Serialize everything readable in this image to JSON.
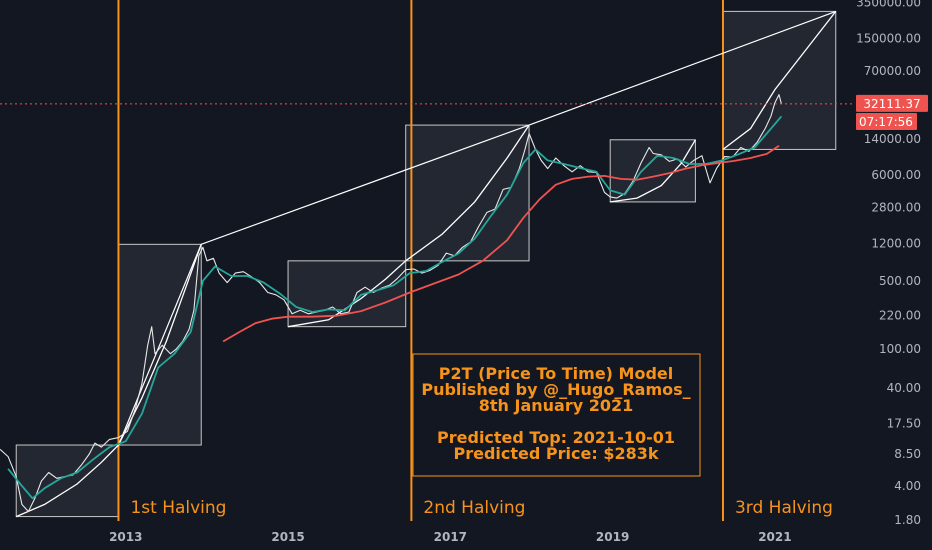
{
  "chart_data": {
    "type": "line",
    "title": "",
    "xlabel": "",
    "ylabel": "",
    "scale": "log",
    "ylim": [
      1.6,
      370000
    ],
    "xlim": [
      2011.45,
      2021.95
    ],
    "y_ticks": [
      "350000.00",
      "150000.00",
      "70000.00",
      "14000.00",
      "6000.00",
      "2800.00",
      "1200.00",
      "500.00",
      "220.00",
      "100.00",
      "40.00",
      "17.50",
      "8.50",
      "4.00",
      "1.80"
    ],
    "y_tick_values": [
      350000,
      150000,
      70000,
      14000,
      6000,
      2800,
      1200,
      500,
      220,
      100,
      40,
      17.5,
      8.5,
      4,
      1.8
    ],
    "x_ticks": [
      "2013",
      "2015",
      "2017",
      "2019",
      "2021"
    ],
    "x_tick_values": [
      2013,
      2015,
      2017,
      2019,
      2021
    ],
    "grid": false,
    "halvings": [
      {
        "label": "1st Halving",
        "date": 2012.91
      },
      {
        "label": "2nd Halving",
        "date": 2016.52
      },
      {
        "label": "3rd Halving",
        "date": 2020.36
      }
    ],
    "current_price": {
      "label": "32111.37",
      "value": 32111.37,
      "countdown": "07:17:56"
    },
    "cycle_boxes": [
      {
        "x0": 2011.65,
        "x1": 2012.91,
        "y0": 1.95,
        "y1": 10.5
      },
      {
        "x0": 2012.91,
        "x1": 2013.93,
        "y0": 10.5,
        "y1": 1180
      },
      {
        "x0": 2015.0,
        "x1": 2016.45,
        "y0": 170,
        "y1": 800
      },
      {
        "x0": 2016.45,
        "x1": 2017.97,
        "y0": 800,
        "y1": 19500
      },
      {
        "x0": 2018.97,
        "x1": 2020.02,
        "y0": 3200,
        "y1": 13800
      },
      {
        "x0": 2020.36,
        "x1": 2021.75,
        "y0": 11000,
        "y1": 283000
      }
    ],
    "peak_trend_line": [
      {
        "x": 2012.91,
        "y": 10.5
      },
      {
        "x": 2013.93,
        "y": 1180
      },
      {
        "x": 2017.97,
        "y": 19500
      },
      {
        "x": 2021.75,
        "y": 283000
      }
    ],
    "curves": [
      [
        [
          2011.65,
          1.95
        ],
        [
          2012.0,
          2.6
        ],
        [
          2012.4,
          4.2
        ],
        [
          2012.7,
          7.0
        ],
        [
          2012.91,
          10.5
        ]
      ],
      [
        [
          2012.91,
          10.5
        ],
        [
          2013.2,
          32
        ],
        [
          2013.5,
          120
        ],
        [
          2013.75,
          450
        ],
        [
          2013.93,
          1180
        ]
      ],
      [
        [
          2015.0,
          170
        ],
        [
          2015.5,
          200
        ],
        [
          2015.9,
          330
        ],
        [
          2016.2,
          520
        ],
        [
          2016.45,
          800
        ]
      ],
      [
        [
          2016.45,
          800
        ],
        [
          2016.9,
          1500
        ],
        [
          2017.3,
          3200
        ],
        [
          2017.7,
          9000
        ],
        [
          2017.97,
          19500
        ]
      ],
      [
        [
          2018.97,
          3200
        ],
        [
          2019.3,
          3500
        ],
        [
          2019.6,
          4700
        ],
        [
          2019.85,
          8000
        ],
        [
          2020.02,
          13800
        ]
      ],
      [
        [
          2020.36,
          11000
        ],
        [
          2020.7,
          18000
        ],
        [
          2021.0,
          45000
        ],
        [
          2021.4,
          120000
        ],
        [
          2021.75,
          283000
        ]
      ]
    ],
    "series": [
      {
        "color": "#e8e8e8",
        "values": [
          [
            2011.45,
            9.5
          ],
          [
            2011.55,
            8.0
          ],
          [
            2011.65,
            5.0
          ],
          [
            2011.72,
            2.6
          ],
          [
            2011.8,
            2.2
          ],
          [
            2011.88,
            3.0
          ],
          [
            2011.96,
            4.5
          ],
          [
            2012.05,
            5.5
          ],
          [
            2012.15,
            4.8
          ],
          [
            2012.25,
            5.0
          ],
          [
            2012.35,
            5.2
          ],
          [
            2012.45,
            6.5
          ],
          [
            2012.55,
            8.5
          ],
          [
            2012.62,
            11.0
          ],
          [
            2012.7,
            10.0
          ],
          [
            2012.8,
            12.0
          ],
          [
            2012.91,
            12.5
          ],
          [
            2013.02,
            14.5
          ],
          [
            2013.12,
            25
          ],
          [
            2013.2,
            45
          ],
          [
            2013.27,
            110
          ],
          [
            2013.32,
            170
          ],
          [
            2013.36,
            90
          ],
          [
            2013.45,
            110
          ],
          [
            2013.55,
            90
          ],
          [
            2013.62,
            100
          ],
          [
            2013.7,
            120
          ],
          [
            2013.78,
            160
          ],
          [
            2013.84,
            250
          ],
          [
            2013.9,
            900
          ],
          [
            2013.95,
            1100
          ],
          [
            2014.0,
            800
          ],
          [
            2014.08,
            850
          ],
          [
            2014.15,
            600
          ],
          [
            2014.25,
            480
          ],
          [
            2014.35,
            600
          ],
          [
            2014.45,
            620
          ],
          [
            2014.55,
            550
          ],
          [
            2014.65,
            480
          ],
          [
            2014.75,
            380
          ],
          [
            2014.85,
            360
          ],
          [
            2014.95,
            320
          ],
          [
            2015.05,
            230
          ],
          [
            2015.15,
            250
          ],
          [
            2015.25,
            230
          ],
          [
            2015.35,
            240
          ],
          [
            2015.45,
            250
          ],
          [
            2015.55,
            270
          ],
          [
            2015.65,
            230
          ],
          [
            2015.75,
            240
          ],
          [
            2015.85,
            380
          ],
          [
            2015.95,
            430
          ],
          [
            2016.05,
            380
          ],
          [
            2016.15,
            420
          ],
          [
            2016.25,
            450
          ],
          [
            2016.35,
            530
          ],
          [
            2016.45,
            650
          ],
          [
            2016.55,
            660
          ],
          [
            2016.65,
            600
          ],
          [
            2016.75,
            640
          ],
          [
            2016.85,
            720
          ],
          [
            2016.95,
            960
          ],
          [
            2017.05,
            900
          ],
          [
            2017.15,
            1100
          ],
          [
            2017.25,
            1250
          ],
          [
            2017.35,
            1800
          ],
          [
            2017.45,
            2500
          ],
          [
            2017.55,
            2700
          ],
          [
            2017.65,
            4300
          ],
          [
            2017.75,
            4500
          ],
          [
            2017.85,
            7000
          ],
          [
            2017.92,
            11000
          ],
          [
            2017.97,
            16000
          ],
          [
            2018.05,
            11000
          ],
          [
            2018.12,
            8500
          ],
          [
            2018.2,
            7000
          ],
          [
            2018.3,
            9000
          ],
          [
            2018.4,
            7500
          ],
          [
            2018.5,
            6500
          ],
          [
            2018.6,
            7500
          ],
          [
            2018.7,
            6500
          ],
          [
            2018.8,
            6400
          ],
          [
            2018.9,
            4000
          ],
          [
            2018.97,
            3600
          ],
          [
            2019.05,
            3500
          ],
          [
            2019.15,
            3900
          ],
          [
            2019.25,
            5200
          ],
          [
            2019.35,
            8000
          ],
          [
            2019.45,
            11500
          ],
          [
            2019.5,
            10000
          ],
          [
            2019.6,
            9700
          ],
          [
            2019.7,
            8300
          ],
          [
            2019.8,
            8800
          ],
          [
            2019.9,
            7300
          ],
          [
            2020.0,
            8500
          ],
          [
            2020.1,
            9500
          ],
          [
            2020.2,
            5000
          ],
          [
            2020.28,
            7000
          ],
          [
            2020.38,
            9300
          ],
          [
            2020.48,
            9200
          ],
          [
            2020.58,
            11500
          ],
          [
            2020.68,
            10500
          ],
          [
            2020.78,
            13000
          ],
          [
            2020.88,
            18000
          ],
          [
            2020.95,
            24000
          ],
          [
            2021.0,
            33000
          ],
          [
            2021.05,
            40000
          ],
          [
            2021.08,
            32111
          ]
        ]
      },
      {
        "color": "#26a69a",
        "values": [
          [
            2011.55,
            6.0
          ],
          [
            2011.7,
            4.2
          ],
          [
            2011.85,
            3.0
          ],
          [
            2012.0,
            3.8
          ],
          [
            2012.2,
            4.8
          ],
          [
            2012.4,
            5.5
          ],
          [
            2012.6,
            7.5
          ],
          [
            2012.8,
            10.0
          ],
          [
            2013.0,
            11.5
          ],
          [
            2013.2,
            22
          ],
          [
            2013.4,
            65
          ],
          [
            2013.6,
            90
          ],
          [
            2013.8,
            150
          ],
          [
            2013.95,
            500
          ],
          [
            2014.1,
            700
          ],
          [
            2014.3,
            560
          ],
          [
            2014.5,
            560
          ],
          [
            2014.7,
            480
          ],
          [
            2014.9,
            370
          ],
          [
            2015.1,
            270
          ],
          [
            2015.3,
            240
          ],
          [
            2015.5,
            255
          ],
          [
            2015.7,
            250
          ],
          [
            2015.9,
            360
          ],
          [
            2016.1,
            400
          ],
          [
            2016.3,
            450
          ],
          [
            2016.5,
            600
          ],
          [
            2016.7,
            630
          ],
          [
            2016.9,
            780
          ],
          [
            2017.1,
            950
          ],
          [
            2017.3,
            1350
          ],
          [
            2017.5,
            2300
          ],
          [
            2017.7,
            3800
          ],
          [
            2017.9,
            8000
          ],
          [
            2018.05,
            11000
          ],
          [
            2018.2,
            8500
          ],
          [
            2018.4,
            7800
          ],
          [
            2018.6,
            7100
          ],
          [
            2018.8,
            6500
          ],
          [
            2018.97,
            4200
          ],
          [
            2019.15,
            3800
          ],
          [
            2019.35,
            6500
          ],
          [
            2019.55,
            9500
          ],
          [
            2019.75,
            9000
          ],
          [
            2019.95,
            7800
          ],
          [
            2020.15,
            7800
          ],
          [
            2020.35,
            8500
          ],
          [
            2020.55,
            9800
          ],
          [
            2020.75,
            11500
          ],
          [
            2020.9,
            16000
          ],
          [
            2021.0,
            20000
          ],
          [
            2021.08,
            24000
          ]
        ]
      },
      {
        "color": "#ef5350",
        "values": [
          [
            2014.2,
            120
          ],
          [
            2014.4,
            150
          ],
          [
            2014.6,
            185
          ],
          [
            2014.8,
            205
          ],
          [
            2015.0,
            215
          ],
          [
            2015.3,
            215
          ],
          [
            2015.6,
            220
          ],
          [
            2015.9,
            245
          ],
          [
            2016.2,
            300
          ],
          [
            2016.5,
            380
          ],
          [
            2016.8,
            470
          ],
          [
            2017.1,
            580
          ],
          [
            2017.4,
            800
          ],
          [
            2017.7,
            1300
          ],
          [
            2017.9,
            2200
          ],
          [
            2018.1,
            3400
          ],
          [
            2018.3,
            4800
          ],
          [
            2018.5,
            5500
          ],
          [
            2018.7,
            5800
          ],
          [
            2018.9,
            5900
          ],
          [
            2019.1,
            5500
          ],
          [
            2019.3,
            5400
          ],
          [
            2019.5,
            5800
          ],
          [
            2019.7,
            6300
          ],
          [
            2019.9,
            7000
          ],
          [
            2020.1,
            7600
          ],
          [
            2020.3,
            8000
          ],
          [
            2020.5,
            8400
          ],
          [
            2020.7,
            9000
          ],
          [
            2020.9,
            9900
          ],
          [
            2021.05,
            12000
          ]
        ]
      }
    ],
    "annotation": {
      "lines": [
        "P2T (Price To Time) Model",
        "Published by @_Hugo_Ramos_",
        "8th January 2021",
        "",
        "Predicted Top: 2021-10-01",
        "Predicted Price: $283k"
      ]
    },
    "colors": {
      "background": "#131722",
      "halving": "#f7931a",
      "price_tag": "#ef5350",
      "box_fill": "#ffffff",
      "trend": "#ffffff"
    }
  }
}
